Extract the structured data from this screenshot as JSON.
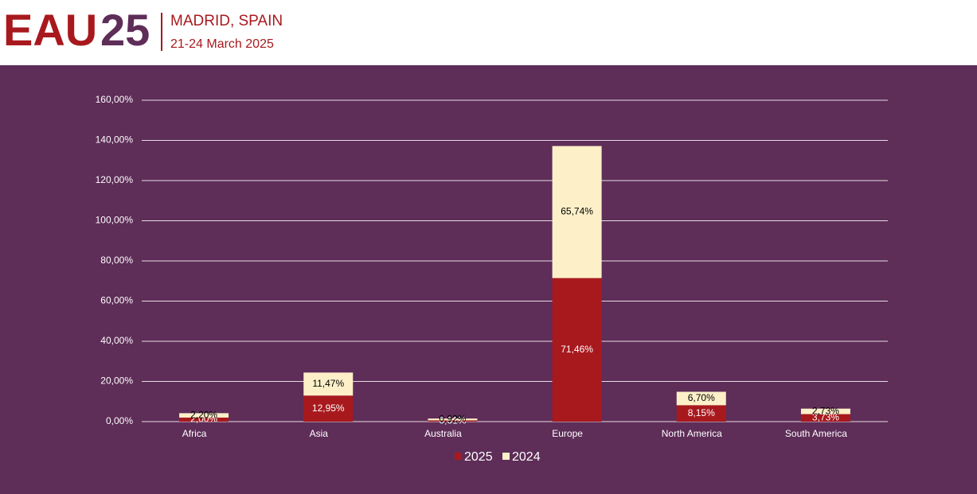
{
  "header": {
    "logo_letters": "EAU",
    "logo_number": "25",
    "location": "MADRID, SPAIN",
    "dates": "21-24 March 2025"
  },
  "chart_data": {
    "type": "stacked_bar",
    "categories": [
      "Africa",
      "Asia",
      "Australia",
      "Europe",
      "North America",
      "South America"
    ],
    "series": [
      {
        "name": "2025",
        "color": "#a8191e",
        "values": [
          2.0,
          12.95,
          0.61,
          71.46,
          8.15,
          3.73
        ],
        "value_labels": [
          "2,00%",
          "12,95%",
          "0,61%",
          "71,46%",
          "8,15%",
          "3,73%"
        ]
      },
      {
        "name": "2024",
        "color": "#fdf0c9",
        "values": [
          2.2,
          11.47,
          0.92,
          65.74,
          6.7,
          2.73
        ],
        "value_labels": [
          "2,20%",
          "11,47%",
          "0,92%",
          "65,74%",
          "6,70%",
          "2,73%"
        ]
      }
    ],
    "ylim": [
      0,
      160
    ],
    "yticks": [
      {
        "value": 0,
        "label": "0,00%"
      },
      {
        "value": 20,
        "label": "20,00%"
      },
      {
        "value": 40,
        "label": "40,00%"
      },
      {
        "value": 60,
        "label": "60,00%"
      },
      {
        "value": 80,
        "label": "80,00%"
      },
      {
        "value": 100,
        "label": "100,00%"
      },
      {
        "value": 120,
        "label": "120,00%"
      },
      {
        "value": 140,
        "label": "140,00%"
      },
      {
        "value": 160,
        "label": "160,00%"
      }
    ],
    "grid": true,
    "legend": "bottom"
  }
}
